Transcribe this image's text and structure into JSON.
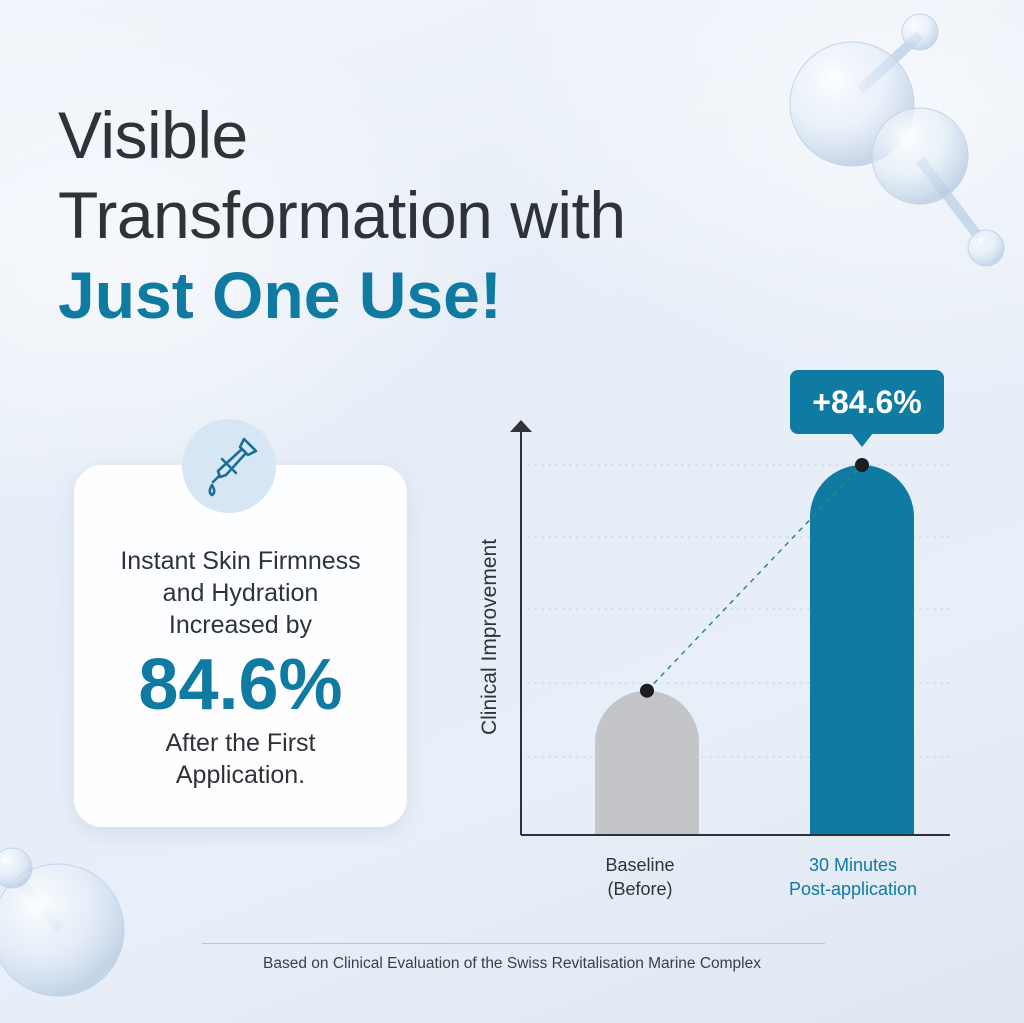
{
  "headline": {
    "line1": "Visible",
    "line2": "Transformation with",
    "accent": "Just One Use!"
  },
  "card": {
    "icon": "dropper-icon",
    "top_text_line1": "Instant Skin Firmness",
    "top_text_line2": "and Hydration",
    "top_text_line3": "Increased by",
    "big_value": "84.6%",
    "bottom_text_line1": "After the First",
    "bottom_text_line2": "Application."
  },
  "chart_data": {
    "type": "bar",
    "categories": [
      "Baseline (Before)",
      "30 Minutes Post-application"
    ],
    "category_lines": [
      [
        "Baseline",
        "(Before)"
      ],
      [
        "30 Minutes",
        "Post-application"
      ]
    ],
    "values": [
      0.39,
      1.0
    ],
    "value_basis": "relative height (fraction of the taller bar)",
    "ylabel": "Clinical Improvement",
    "annotation": "+84.6%",
    "colors": {
      "baseline": "#c3c5c8",
      "post": "#0f7aa2",
      "accent": "#0f7aa2"
    },
    "grid": "dashed horizontal",
    "trend_line": "dashed"
  },
  "footer": {
    "note": "Based on Clinical Evaluation of the Swiss Revitalisation Marine Complex"
  },
  "colors": {
    "accent": "#0f7aa2",
    "text": "#2f3338"
  }
}
